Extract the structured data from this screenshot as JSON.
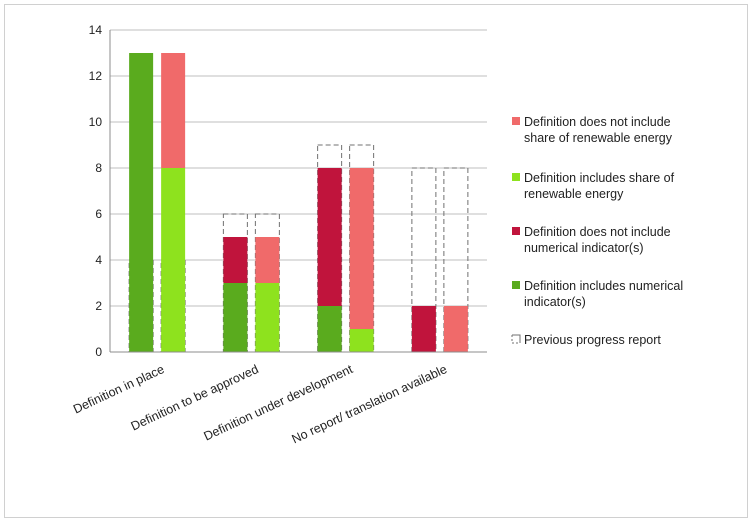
{
  "chart_data": {
    "type": "bar",
    "stacked": true,
    "ylim": [
      0,
      14
    ],
    "yticks": [
      0,
      2,
      4,
      6,
      8,
      10,
      12,
      14
    ],
    "grid": true,
    "legend_position": "right",
    "categories": [
      "Definition in place",
      "Definition to be approved",
      "Definition under development",
      "No report/ translation available"
    ],
    "bar_groups": [
      {
        "name": "Numerical indicator",
        "segments": [
          "Definition includes numerical indicator(s)",
          "Definition does not include numerical indicator(s)"
        ]
      },
      {
        "name": "Renewable energy share",
        "segments": [
          "Definition includes share of renewable energy",
          "Definition does not include share of renewable energy"
        ]
      }
    ],
    "series": [
      {
        "name": "Definition does not include share of renewable energy",
        "color": "#f06a6a",
        "group": "Renewable energy share",
        "values": [
          5,
          2,
          7,
          2
        ]
      },
      {
        "name": "Definition includes share of renewable energy",
        "color": "#8ee21e",
        "group": "Renewable energy share",
        "values": [
          8,
          3,
          1,
          0
        ]
      },
      {
        "name": "Definition does not include numerical indicator(s)",
        "color": "#c0143c",
        "group": "Numerical indicator",
        "values": [
          0,
          2,
          6,
          2
        ]
      },
      {
        "name": "Definition includes numerical indicator(s)",
        "color": "#5aab1e",
        "group": "Numerical indicator",
        "values": [
          13,
          3,
          2,
          0
        ]
      }
    ],
    "previous_progress_report": {
      "name": "Previous progress report",
      "style": "dashed outline",
      "values": [
        4,
        6,
        9,
        8
      ]
    }
  }
}
